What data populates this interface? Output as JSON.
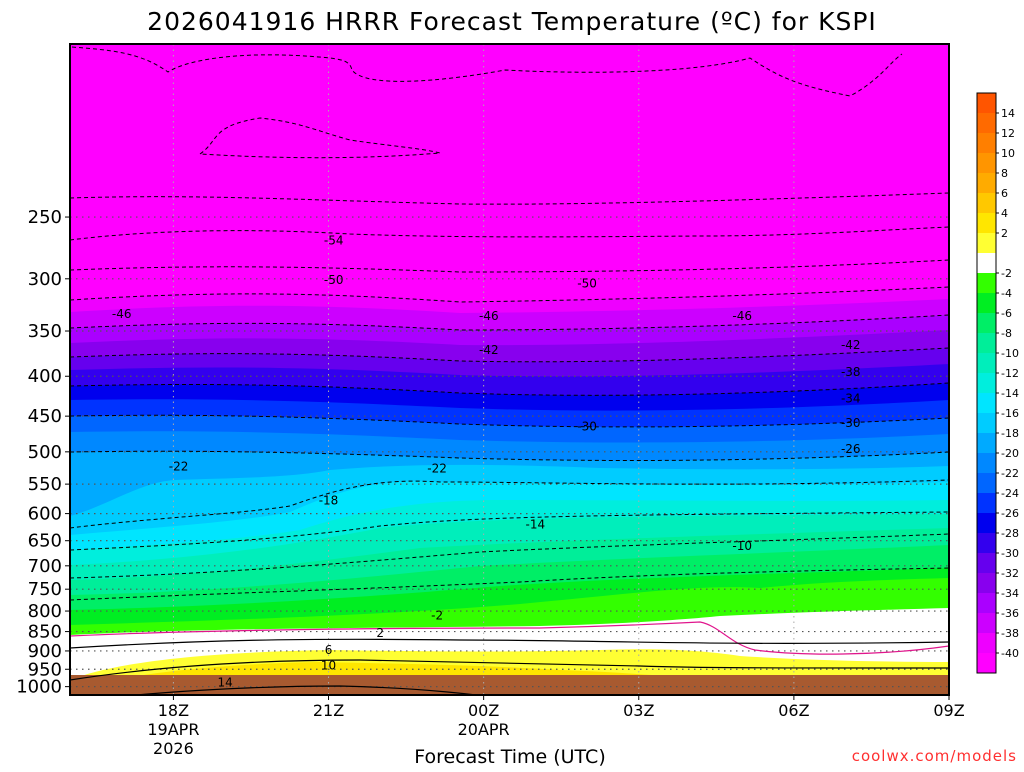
{
  "chart_data": {
    "type": "heatmap",
    "title": "2026041916 HRRR Forecast Temperature (ºC) for KSPI",
    "xlabel": "Forecast Time (UTC)",
    "ylabel": "",
    "credit": "coolwx.com/models",
    "x_range_hours": [
      -2.0,
      15.0
    ],
    "x_ticks": [
      {
        "hour": 0,
        "label": "18Z",
        "date": "19APR",
        "year": "2026"
      },
      {
        "hour": 3,
        "label": "21Z"
      },
      {
        "hour": 6,
        "label": "00Z",
        "date": "20APR"
      },
      {
        "hour": 9,
        "label": "03Z"
      },
      {
        "hour": 12,
        "label": "06Z"
      },
      {
        "hour": 15,
        "label": "09Z"
      }
    ],
    "y_range_hPa": [
      1025,
      150
    ],
    "y_ticks": [
      250,
      300,
      350,
      400,
      450,
      500,
      550,
      600,
      650,
      700,
      750,
      800,
      850,
      900,
      950,
      1000
    ],
    "colorbar": {
      "labels": [
        "14",
        "12",
        "10",
        "8",
        "6",
        "4",
        "2",
        "-2",
        "-4",
        "-6",
        "-8",
        "-10",
        "-12",
        "-14",
        "-16",
        "-18",
        "-20",
        "-22",
        "-24",
        "-26",
        "-28",
        "-30",
        "-32",
        "-34",
        "-36",
        "-38",
        "-40"
      ],
      "colors": [
        "#ff5500",
        "#ff6a00",
        "#ff7f00",
        "#ff9500",
        "#ffab00",
        "#ffc800",
        "#ffe600",
        "#ffff33",
        "#ffffff",
        "#33ff00",
        "#00ee22",
        "#00ee66",
        "#00ee99",
        "#00eebb",
        "#00eedd",
        "#00e5ff",
        "#00ccff",
        "#00aaff",
        "#0088ff",
        "#0066ff",
        "#0033ff",
        "#0000ee",
        "#3300ee",
        "#6600ee",
        "#8800ee",
        "#aa00ff",
        "#cc00ff",
        "#ee00ff",
        "#ff00ff"
      ]
    },
    "ground_color": "#a85a30",
    "contour_labels": [
      {
        "text": "-54",
        "t": 3.1,
        "p": 268
      },
      {
        "text": "-50",
        "t": 3.1,
        "p": 301
      },
      {
        "text": "-50",
        "t": 8.0,
        "p": 304
      },
      {
        "text": "-46",
        "t": -1.0,
        "p": 333
      },
      {
        "text": "-46",
        "t": 6.1,
        "p": 335
      },
      {
        "text": "-46",
        "t": 11.0,
        "p": 335
      },
      {
        "text": "-42",
        "t": 6.1,
        "p": 370
      },
      {
        "text": "-42",
        "t": 13.1,
        "p": 365
      },
      {
        "text": "-38",
        "t": 13.1,
        "p": 395
      },
      {
        "text": "-34",
        "t": 13.1,
        "p": 427
      },
      {
        "text": "-30",
        "t": 8.0,
        "p": 464
      },
      {
        "text": "-30",
        "t": 13.1,
        "p": 459
      },
      {
        "text": "-26",
        "t": 13.1,
        "p": 496
      },
      {
        "text": "-22",
        "t": 0.1,
        "p": 522
      },
      {
        "text": "-22",
        "t": 5.1,
        "p": 525
      },
      {
        "text": "-18",
        "t": 3.0,
        "p": 577
      },
      {
        "text": "-14",
        "t": 7.0,
        "p": 620
      },
      {
        "text": "-10",
        "t": 11.0,
        "p": 660
      },
      {
        "text": "-2",
        "t": 5.1,
        "p": 810
      },
      {
        "text": "2",
        "t": 4.0,
        "p": 853
      },
      {
        "text": "6",
        "t": 3.0,
        "p": 897
      },
      {
        "text": "10",
        "t": 3.0,
        "p": 940
      },
      {
        "text": "14",
        "t": 1.0,
        "p": 988
      }
    ]
  }
}
